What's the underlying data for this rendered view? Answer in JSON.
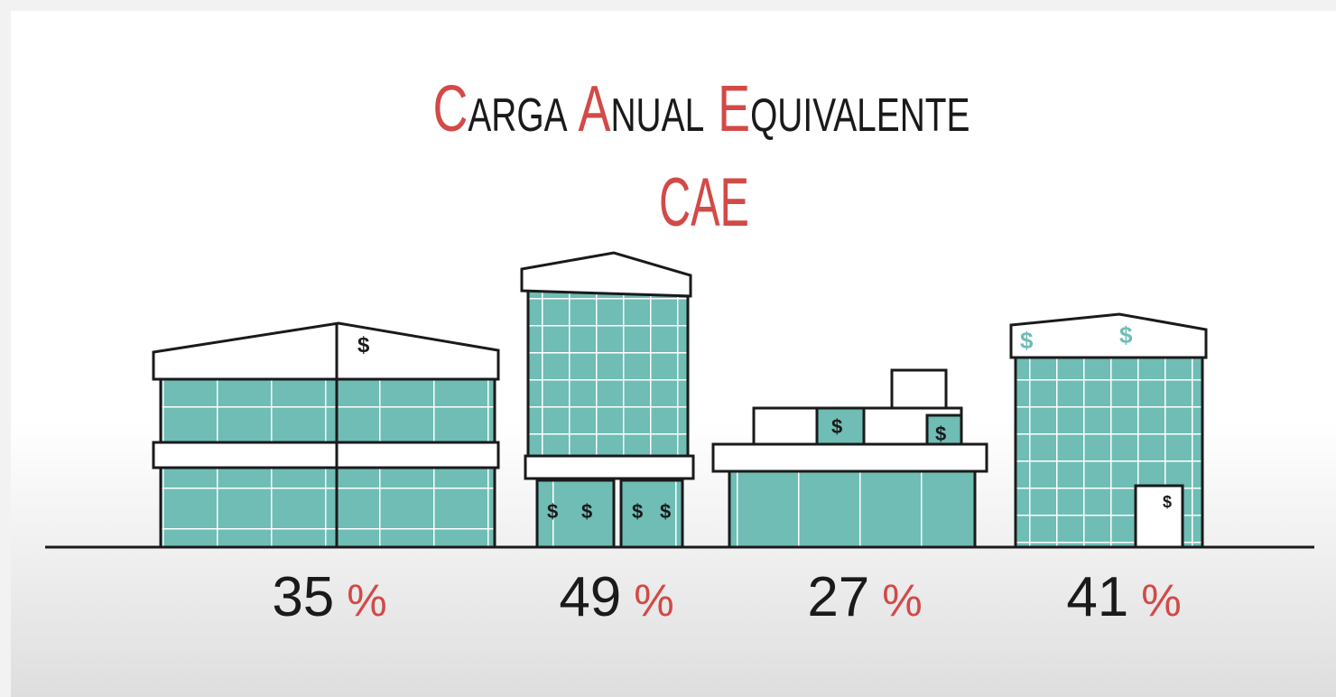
{
  "header": {
    "title": "Carga Anual Equivalente",
    "acronym": "CAE"
  },
  "buildings": [
    {
      "label": "35%"
    },
    {
      "label": "49%"
    },
    {
      "label": "27%"
    },
    {
      "label": "41%"
    }
  ]
}
